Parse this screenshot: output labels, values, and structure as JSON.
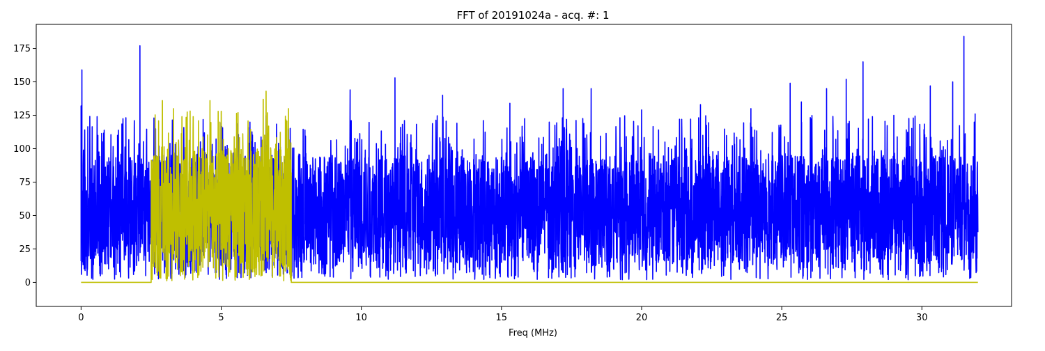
{
  "chart_data": {
    "type": "line",
    "title": "FFT of 20191024a - acq. #: 1",
    "xlabel": "Freq (MHz)",
    "ylabel": "",
    "xlim": [
      -1.6,
      33.2
    ],
    "ylim": [
      -18,
      193
    ],
    "x_ticks": [
      0,
      5,
      10,
      15,
      20,
      25,
      30
    ],
    "x_tick_labels": [
      "0",
      "5",
      "10",
      "15",
      "20",
      "25",
      "30"
    ],
    "y_ticks": [
      0,
      25,
      50,
      75,
      100,
      125,
      150,
      175
    ],
    "y_tick_labels": [
      "0",
      "25",
      "50",
      "75",
      "100",
      "125",
      "150",
      "175"
    ],
    "grid": false,
    "legend": "none",
    "series": [
      {
        "color": "#0000ff",
        "x_range": [
          0,
          32
        ],
        "noise": {
          "min": 2,
          "max": 125,
          "typical_min": 15,
          "typical_max": 95
        },
        "peaks": [
          {
            "x": 0.0,
            "y": 132
          },
          {
            "x": 0.03,
            "y": 159
          },
          {
            "x": 0.6,
            "y": 110
          },
          {
            "x": 1.3,
            "y": 110
          },
          {
            "x": 1.9,
            "y": 121
          },
          {
            "x": 2.1,
            "y": 177
          },
          {
            "x": 9.6,
            "y": 144
          },
          {
            "x": 11.2,
            "y": 153
          },
          {
            "x": 12.9,
            "y": 140
          },
          {
            "x": 15.3,
            "y": 134
          },
          {
            "x": 17.2,
            "y": 145
          },
          {
            "x": 18.2,
            "y": 145
          },
          {
            "x": 20.0,
            "y": 129
          },
          {
            "x": 22.1,
            "y": 133
          },
          {
            "x": 23.9,
            "y": 130
          },
          {
            "x": 25.3,
            "y": 149
          },
          {
            "x": 25.7,
            "y": 135
          },
          {
            "x": 26.6,
            "y": 145
          },
          {
            "x": 27.3,
            "y": 152
          },
          {
            "x": 27.9,
            "y": 165
          },
          {
            "x": 29.0,
            "y": 125
          },
          {
            "x": 30.3,
            "y": 147
          },
          {
            "x": 31.1,
            "y": 150
          },
          {
            "x": 31.5,
            "y": 184
          },
          {
            "x": 31.9,
            "y": 126
          }
        ]
      },
      {
        "color": "#bfbf00",
        "x_range": [
          0,
          32
        ],
        "baseline": 0,
        "band": [
          2.5,
          7.5
        ],
        "noise": {
          "min": 1,
          "max": 130,
          "typical_min": 10,
          "typical_max": 100
        },
        "peaks": [
          {
            "x": 2.9,
            "y": 136
          },
          {
            "x": 3.3,
            "y": 130
          },
          {
            "x": 3.6,
            "y": 124
          },
          {
            "x": 4.0,
            "y": 124
          },
          {
            "x": 4.6,
            "y": 136
          },
          {
            "x": 5.0,
            "y": 128
          },
          {
            "x": 5.6,
            "y": 127
          },
          {
            "x": 6.5,
            "y": 137
          },
          {
            "x": 6.6,
            "y": 143
          },
          {
            "x": 7.4,
            "y": 130
          }
        ]
      }
    ]
  }
}
